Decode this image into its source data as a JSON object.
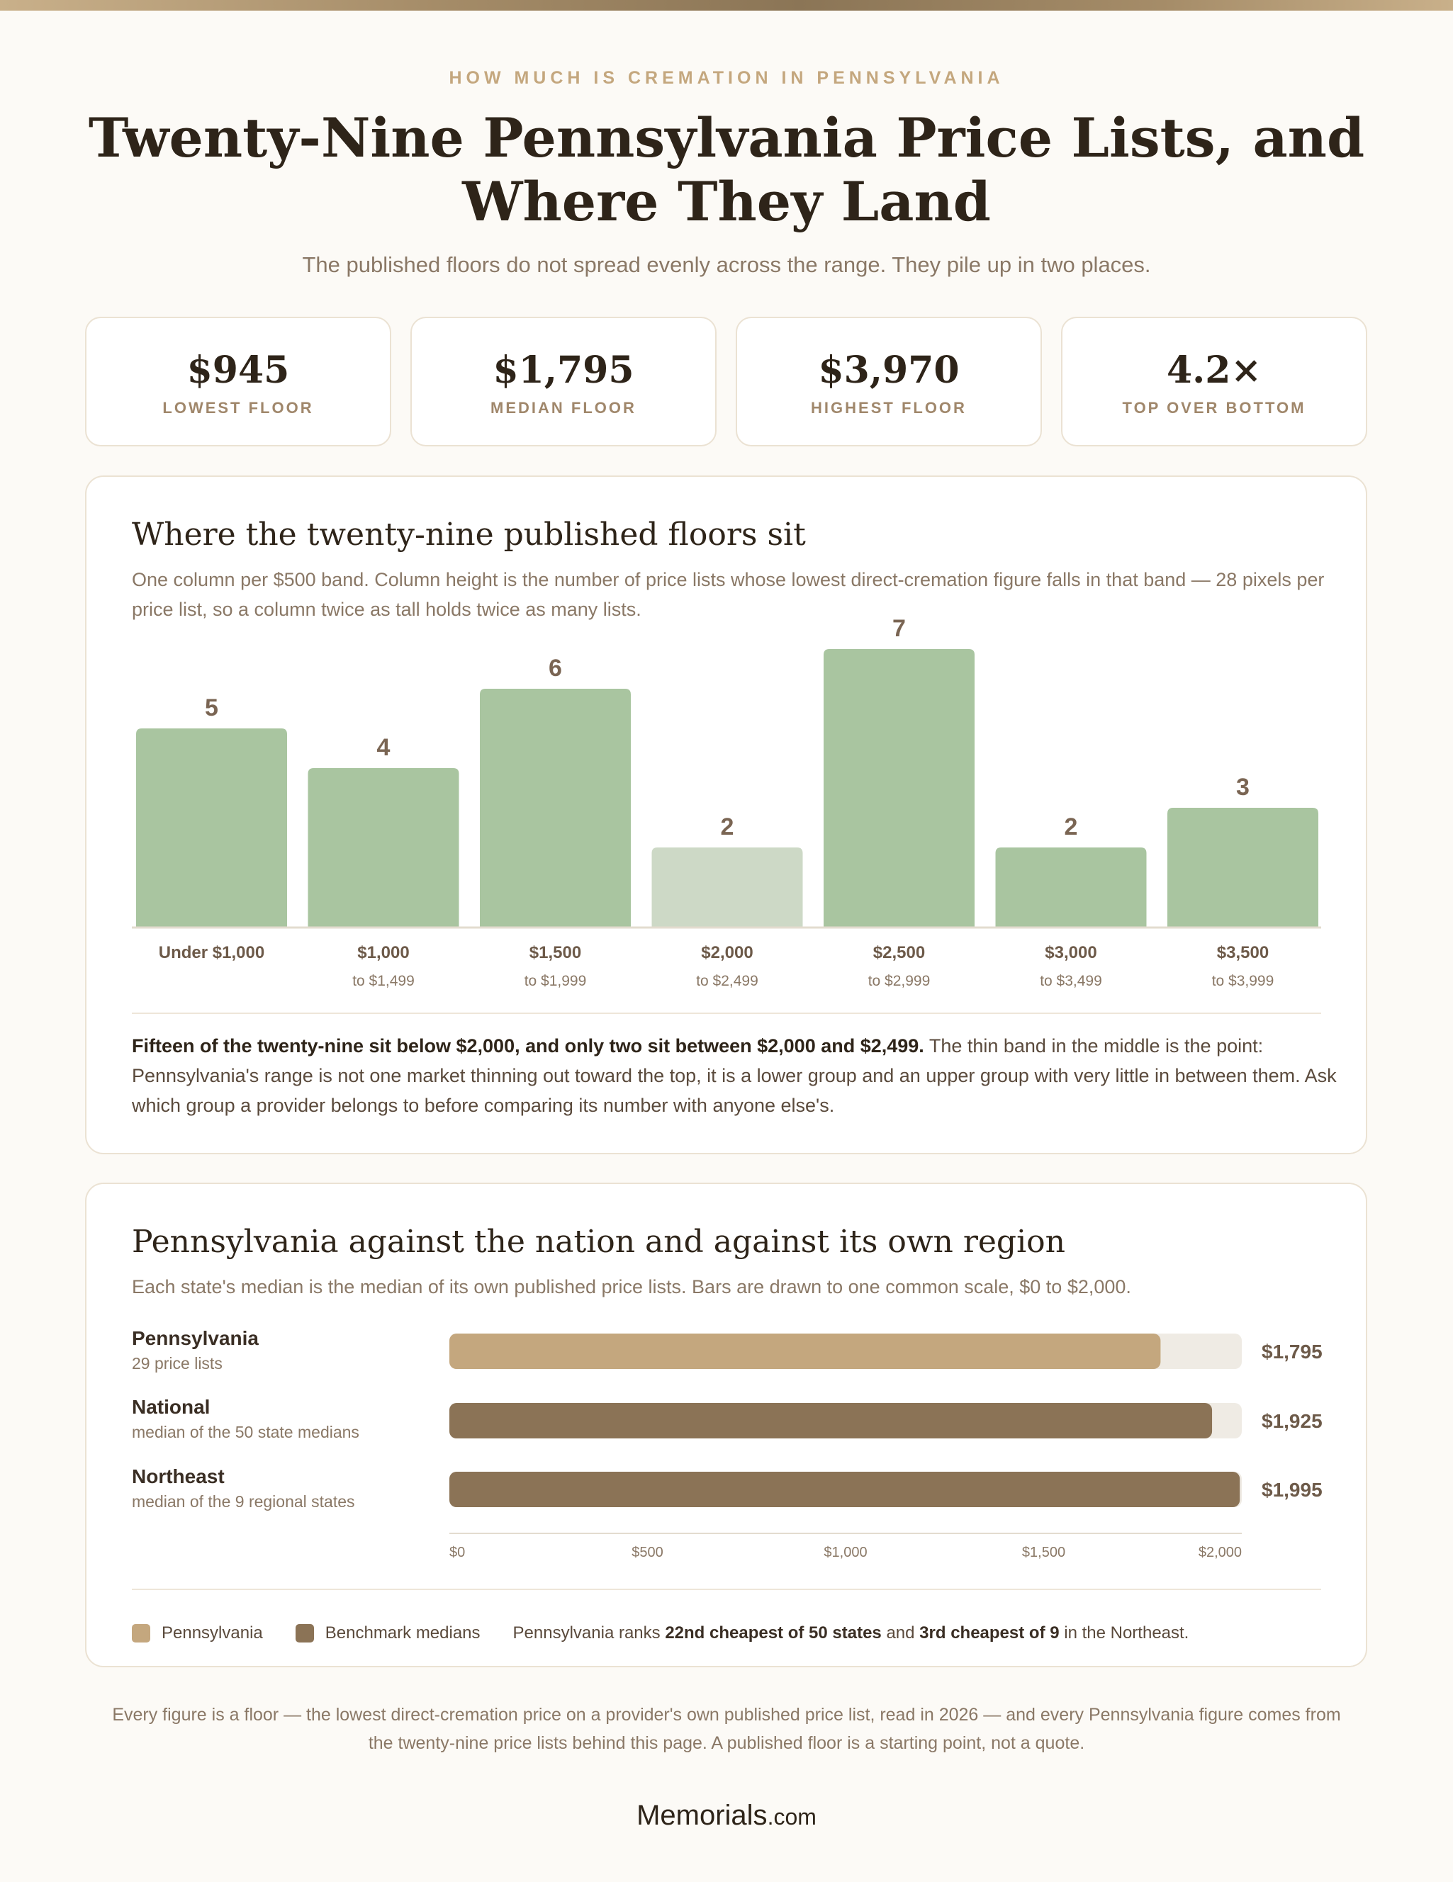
{
  "header": {
    "eyebrow": "HOW MUCH IS CREMATION IN PENNSYLVANIA",
    "title": "Twenty-Nine Pennsylvania Price Lists, and Where They Land",
    "subtitle": "The published floors do not spread evenly across the range. They pile up in two places."
  },
  "stats": [
    {
      "value": "$945",
      "label": "LOWEST FLOOR"
    },
    {
      "value": "$1,795",
      "label": "MEDIAN FLOOR"
    },
    {
      "value": "$3,970",
      "label": "HIGHEST FLOOR"
    },
    {
      "value": "4.2×",
      "label": "TOP OVER BOTTOM"
    }
  ],
  "distribution": {
    "title": "Where the twenty-nine published floors sit",
    "description": "One column per $500 band. Column height is the number of price lists whose lowest direct-cremation figure falls in that band — 28 pixels per price list, so a column twice as tall holds twice as many lists.",
    "note_bold": "Fifteen of the twenty-nine sit below $2,000, and only two sit between $2,000 and $2,499.",
    "note_rest": " The thin band in the middle is the point: Pennsylvania's range is not one market thinning out toward the top, it is a lower group and an upper group with very little in between them. Ask which group a provider belongs to before comparing its number with anyone else's."
  },
  "comparison": {
    "title": "Pennsylvania against the nation and against its own region",
    "description": "Each state's median is the median of its own published price lists. Bars are drawn to one common scale, $0 to $2,000.",
    "legend": {
      "pennsylvania": "Pennsylvania",
      "benchmark": "Benchmark medians",
      "rank_prefix": "Pennsylvania ranks ",
      "rank_national": "22nd cheapest of 50 states",
      "rank_mid": " and ",
      "rank_regional": "3rd cheapest of 9",
      "rank_suffix": " in the Northeast."
    }
  },
  "footer": {
    "text": "Every figure is a floor — the lowest direct-cremation price on a provider's own published price list, read in 2026 — and every Pennsylvania figure comes from the twenty-nine price lists behind this page. A published floor is a starting point, not a quote.",
    "logo_main": "Memorials",
    "logo_suffix": ".com"
  },
  "chart_data": [
    {
      "type": "bar",
      "categories": [
        "Under $1,000",
        "$1,000 to $1,499",
        "$1,500 to $1,999",
        "$2,000 to $2,499",
        "$2,500 to $2,999",
        "$3,000 to $3,499",
        "$3,500 to $3,999"
      ],
      "category_lines": [
        [
          "Under $1,000",
          ""
        ],
        [
          "$1,000",
          "to $1,499"
        ],
        [
          "$1,500",
          "to $1,999"
        ],
        [
          "$2,000",
          "to $2,499"
        ],
        [
          "$2,500",
          "to $2,999"
        ],
        [
          "$3,000",
          "to $3,499"
        ],
        [
          "$3,500",
          "to $3,999"
        ]
      ],
      "values": [
        5,
        4,
        6,
        2,
        7,
        2,
        3
      ],
      "highlight_index": 3,
      "colors": {
        "bar": "#a9c5a0",
        "highlight": "#cdd9c6",
        "value_label": "#7a6553"
      },
      "ylim": [
        0,
        7
      ]
    },
    {
      "type": "bar",
      "orientation": "horizontal",
      "categories": [
        "Pennsylvania",
        "National",
        "Northeast"
      ],
      "subtitles": [
        "29 price lists",
        "median of the 50 state medians",
        "median of the 9 regional states"
      ],
      "values": [
        1795,
        1925,
        1995
      ],
      "value_labels": [
        "$1,795",
        "$1,925",
        "$1,995"
      ],
      "xlim": [
        0,
        2000
      ],
      "xticks": [
        0,
        500,
        1000,
        1500,
        2000
      ],
      "xtick_labels": [
        "$0",
        "$500",
        "$1,000",
        "$1,500",
        "$2,000"
      ],
      "colors": {
        "pennsylvania": "#c4a77e",
        "benchmark": "#8b7356",
        "track": "#efebe4"
      }
    }
  ]
}
